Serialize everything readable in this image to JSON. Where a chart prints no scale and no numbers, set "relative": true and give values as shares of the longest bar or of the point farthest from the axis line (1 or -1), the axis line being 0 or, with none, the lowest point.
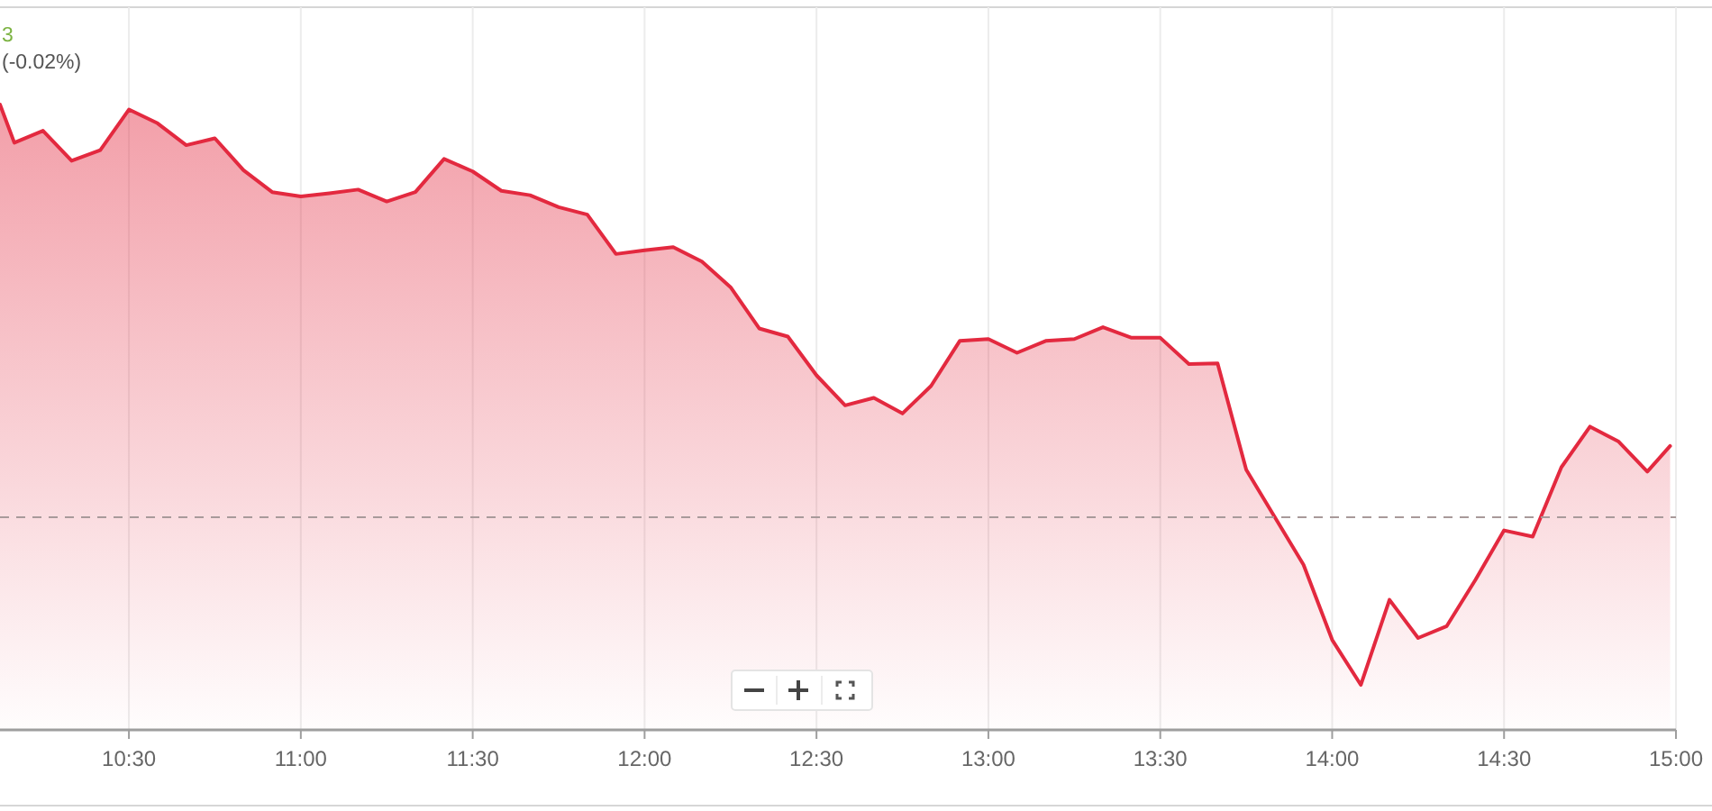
{
  "chart_data": {
    "type": "area",
    "relative": true,
    "annotations": [
      "3",
      "(-0.02%)"
    ],
    "x": [
      10.125,
      10.1667,
      10.25,
      10.3333,
      10.4167,
      10.5,
      10.5833,
      10.6667,
      10.75,
      10.8333,
      10.9167,
      11,
      11.0833,
      11.1667,
      11.25,
      11.3333,
      11.4167,
      11.5,
      11.5833,
      11.6667,
      11.75,
      11.8333,
      11.9167,
      12,
      12.0833,
      12.1667,
      12.25,
      12.3333,
      12.4167,
      12.5,
      12.5833,
      12.6667,
      12.75,
      12.8333,
      12.9167,
      13,
      13.0833,
      13.1667,
      13.25,
      13.3333,
      13.4167,
      13.5,
      13.5833,
      13.6667,
      13.75,
      13.8333,
      13.9167,
      14,
      14.0833,
      14.1667,
      14.25,
      14.3333,
      14.4167,
      14.5,
      14.5833,
      14.6667,
      14.75,
      14.8333,
      14.9167,
      14.983
    ],
    "series": [
      {
        "color": "#e3293f",
        "values": [
          1.0,
          0.939,
          0.958,
          0.91,
          0.927,
          0.992,
          0.97,
          0.935,
          0.946,
          0.895,
          0.86,
          0.853,
          0.858,
          0.864,
          0.845,
          0.86,
          0.913,
          0.893,
          0.862,
          0.855,
          0.836,
          0.824,
          0.761,
          0.767,
          0.772,
          0.749,
          0.708,
          0.642,
          0.629,
          0.567,
          0.519,
          0.531,
          0.506,
          0.55,
          0.622,
          0.625,
          0.603,
          0.622,
          0.625,
          0.644,
          0.627,
          0.627,
          0.585,
          0.586,
          0.416,
          0.34,
          0.264,
          0.144,
          0.072,
          0.208,
          0.147,
          0.166,
          0.24,
          0.319,
          0.309,
          0.42,
          0.485,
          0.461,
          0.413,
          0.454
        ]
      }
    ],
    "xlim": [
      10.125,
      15
    ],
    "xticks": [
      {
        "value": 10.5,
        "label": "10:30"
      },
      {
        "value": 11,
        "label": "11:00"
      },
      {
        "value": 11.5,
        "label": "11:30"
      },
      {
        "value": 12,
        "label": "12:00"
      },
      {
        "value": 12.5,
        "label": "12:30"
      },
      {
        "value": 13,
        "label": "13:00"
      },
      {
        "value": 13.5,
        "label": "13:30"
      },
      {
        "value": 14,
        "label": "14:00"
      },
      {
        "value": 14.5,
        "label": "14:30"
      },
      {
        "value": 15,
        "label": "15:00"
      }
    ],
    "grid": "x",
    "ref_lines": [
      {
        "axis": "y",
        "value": 0.34,
        "color": "#a89a9a",
        "line_style": "dashed"
      }
    ]
  }
}
